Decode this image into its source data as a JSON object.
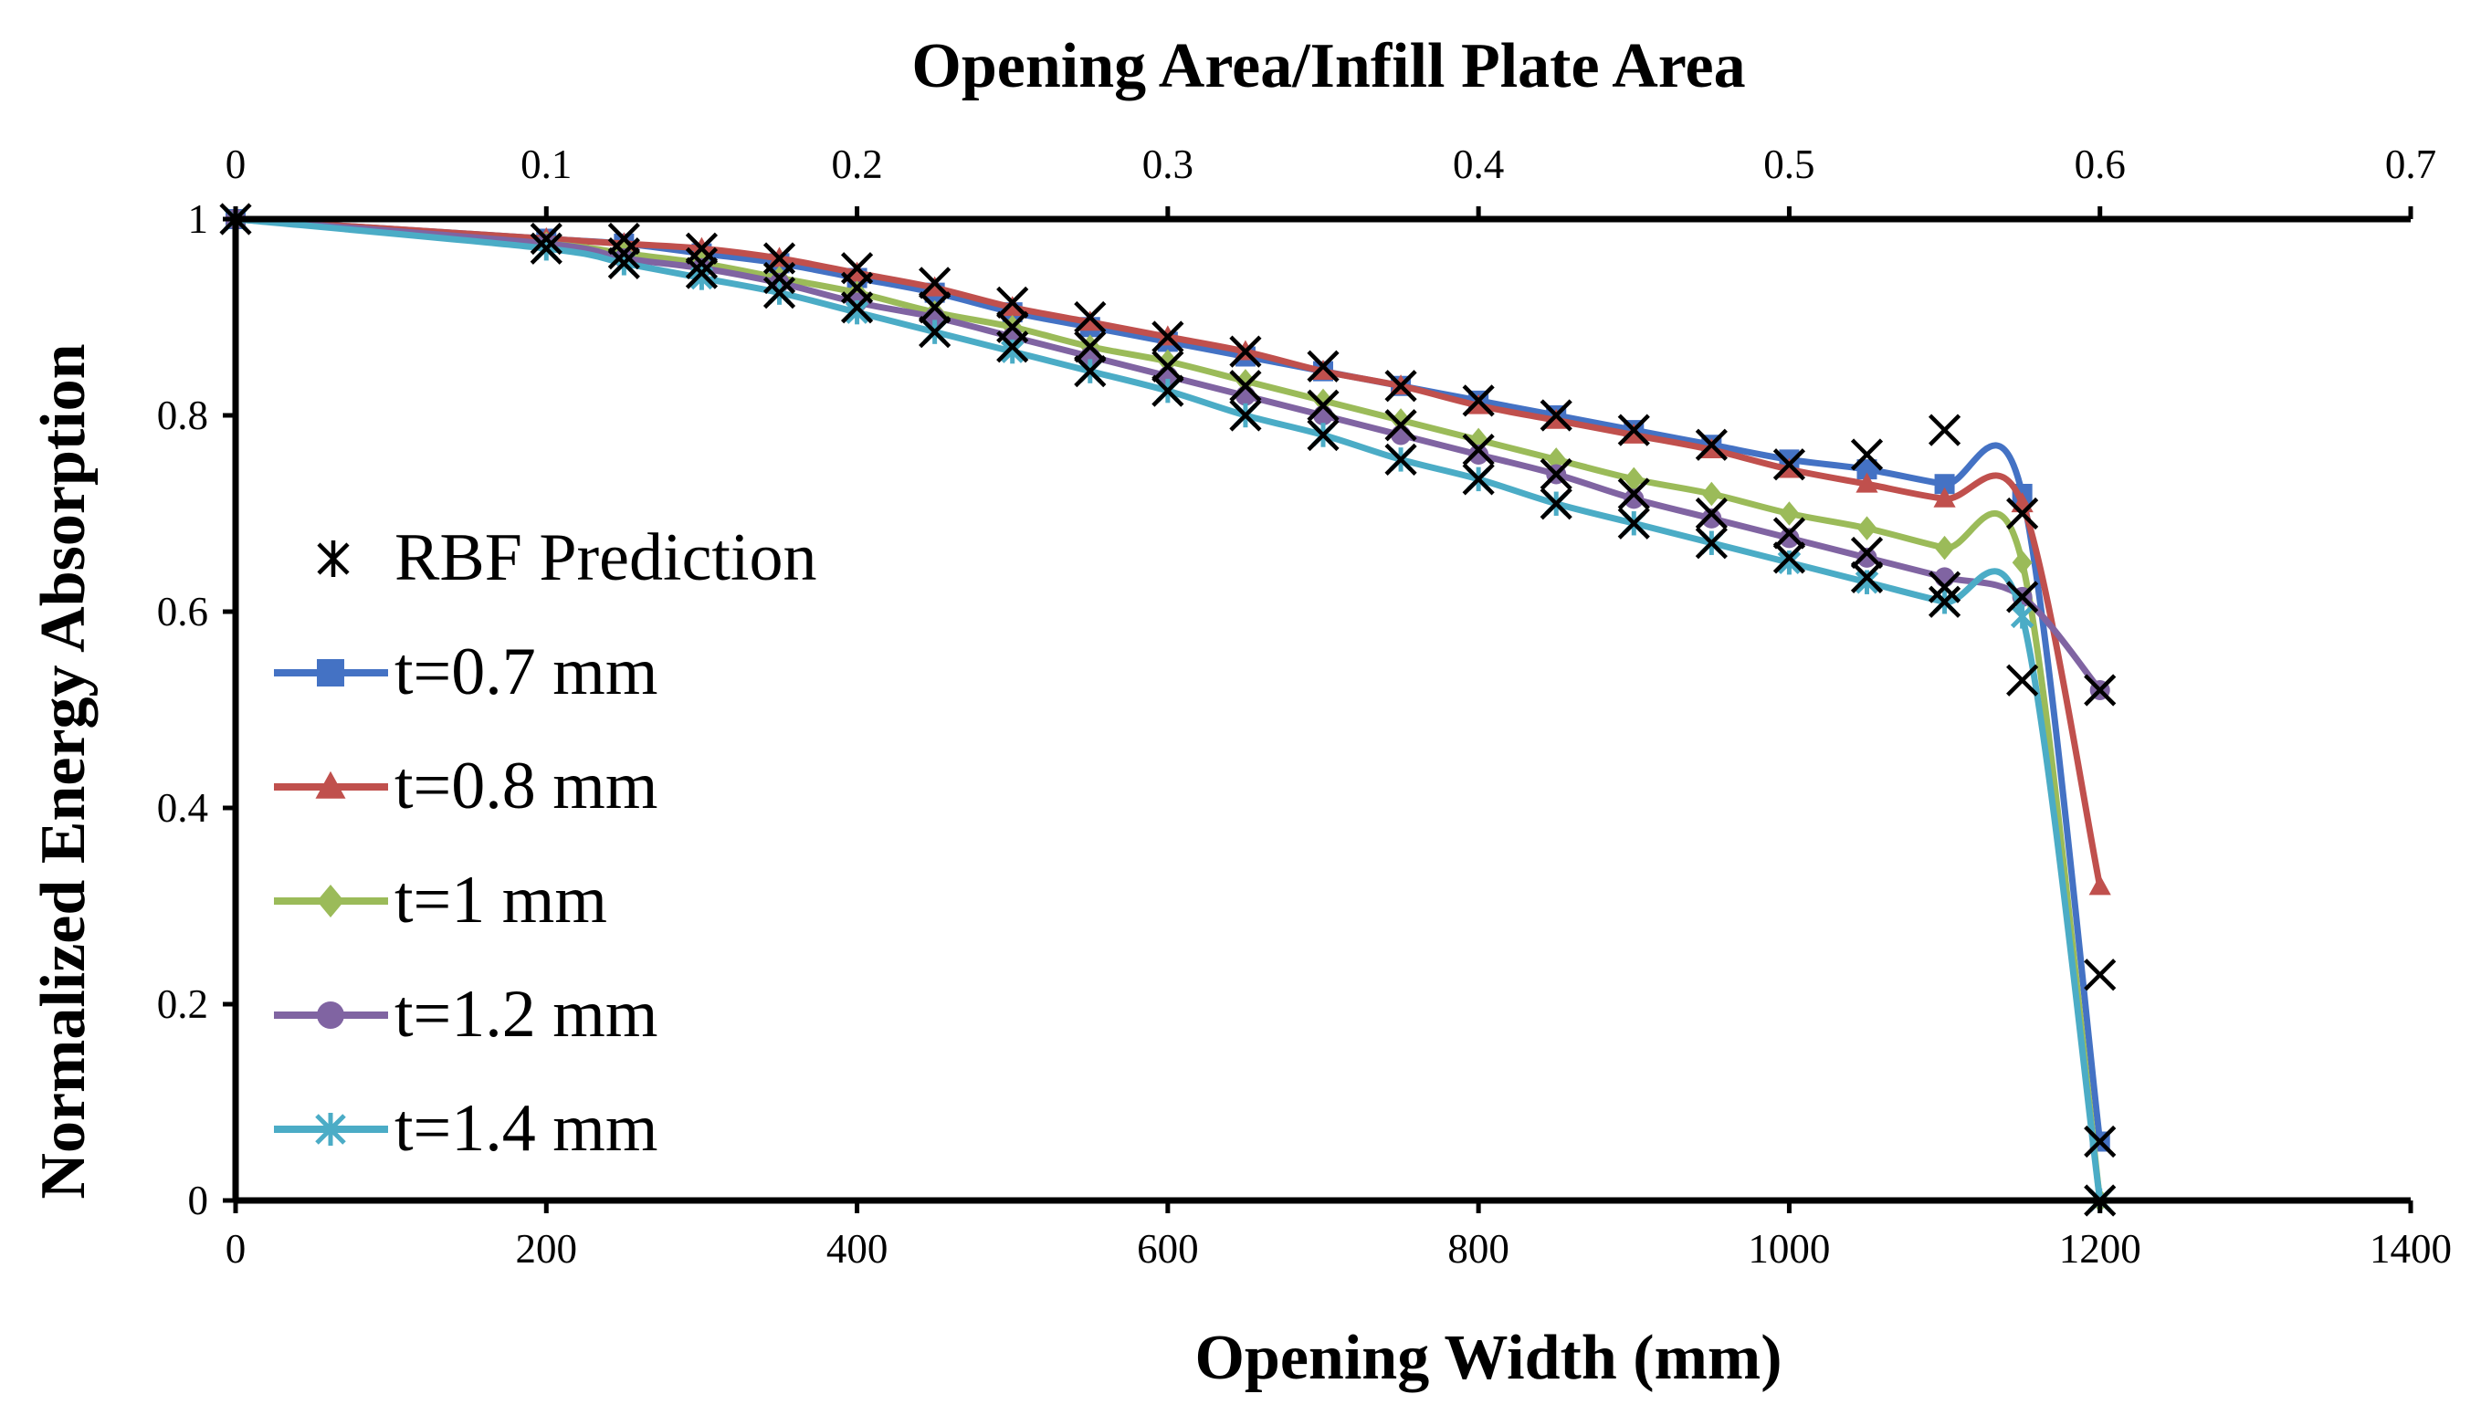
{
  "chart_data": {
    "type": "line",
    "title": "",
    "xlabel": "Opening Width (mm)",
    "x2label": "Opening Area/Infill Plate Area",
    "ylabel": "Normalized Energy Absorption",
    "xlim": [
      0,
      1400
    ],
    "x2lim": [
      0,
      0.7
    ],
    "ylim": [
      0,
      1
    ],
    "x_ticks": [
      0,
      200,
      400,
      600,
      800,
      1000,
      1200,
      1400
    ],
    "x2_ticks": [
      0,
      0.1,
      0.2,
      0.3,
      0.4,
      0.5,
      0.6,
      0.7
    ],
    "y_ticks": [
      0,
      0.2,
      0.4,
      0.6,
      0.8,
      1
    ],
    "legend_position": "left",
    "colors": {
      "t07": "#4472C4",
      "t08": "#C0504D",
      "t10": "#9BBB59",
      "t12": "#8064A2",
      "t14": "#4BACC6",
      "rbf": "#000000"
    },
    "rbf_label": "RBF Prediction",
    "series": [
      {
        "name": "t=0.7 mm",
        "color": "#4472C4",
        "marker": "square",
        "x": [
          0,
          200,
          250,
          300,
          350,
          400,
          450,
          500,
          550,
          600,
          650,
          700,
          750,
          800,
          850,
          900,
          950,
          1000,
          1050,
          1100,
          1150,
          1200
        ],
        "values": [
          1,
          0.98,
          0.975,
          0.965,
          0.955,
          0.94,
          0.925,
          0.905,
          0.89,
          0.875,
          0.86,
          0.845,
          0.83,
          0.815,
          0.8,
          0.785,
          0.77,
          0.755,
          0.745,
          0.73,
          0.72,
          0.06
        ]
      },
      {
        "name": "t=0.8 mm",
        "color": "#C0504D",
        "marker": "triangle",
        "x": [
          0,
          200,
          250,
          300,
          350,
          400,
          450,
          500,
          550,
          600,
          650,
          700,
          750,
          800,
          850,
          900,
          950,
          1000,
          1050,
          1100,
          1150,
          1200
        ],
        "values": [
          1,
          0.98,
          0.975,
          0.97,
          0.96,
          0.945,
          0.93,
          0.91,
          0.895,
          0.88,
          0.865,
          0.845,
          0.83,
          0.81,
          0.795,
          0.78,
          0.765,
          0.745,
          0.73,
          0.715,
          0.71,
          0.32
        ]
      },
      {
        "name": "t=1 mm",
        "color": "#9BBB59",
        "marker": "diamond",
        "x": [
          0,
          200,
          250,
          300,
          350,
          400,
          450,
          500,
          550,
          600,
          650,
          700,
          750,
          800,
          850,
          900,
          950,
          1000,
          1050,
          1100,
          1150,
          1200
        ],
        "values": [
          1,
          0.975,
          0.965,
          0.955,
          0.94,
          0.925,
          0.905,
          0.89,
          0.87,
          0.855,
          0.835,
          0.815,
          0.795,
          0.775,
          0.755,
          0.735,
          0.72,
          0.7,
          0.685,
          0.665,
          0.65,
          0.0
        ]
      },
      {
        "name": "t=1.2 mm",
        "color": "#8064A2",
        "marker": "circle",
        "x": [
          0,
          200,
          250,
          300,
          350,
          400,
          450,
          500,
          550,
          600,
          650,
          700,
          750,
          800,
          850,
          900,
          950,
          1000,
          1050,
          1100,
          1150,
          1200
        ],
        "values": [
          1,
          0.975,
          0.96,
          0.95,
          0.935,
          0.915,
          0.9,
          0.88,
          0.86,
          0.84,
          0.82,
          0.8,
          0.78,
          0.76,
          0.74,
          0.715,
          0.695,
          0.675,
          0.655,
          0.635,
          0.615,
          0.52
        ]
      },
      {
        "name": "t=1.4 mm",
        "color": "#4BACC6",
        "marker": "star",
        "x": [
          0,
          200,
          250,
          300,
          350,
          400,
          450,
          500,
          550,
          600,
          650,
          700,
          750,
          800,
          850,
          900,
          950,
          1000,
          1050,
          1100,
          1150,
          1200
        ],
        "values": [
          1,
          0.97,
          0.955,
          0.94,
          0.925,
          0.905,
          0.885,
          0.865,
          0.845,
          0.825,
          0.8,
          0.78,
          0.755,
          0.735,
          0.71,
          0.69,
          0.67,
          0.65,
          0.63,
          0.61,
          0.595,
          0.0
        ]
      }
    ],
    "rbf_points": {
      "x": [
        0,
        200,
        200,
        250,
        250,
        250,
        300,
        300,
        300,
        350,
        350,
        350,
        400,
        400,
        400,
        450,
        450,
        450,
        500,
        500,
        500,
        550,
        550,
        550,
        600,
        600,
        600,
        650,
        650,
        650,
        700,
        700,
        700,
        750,
        750,
        750,
        800,
        800,
        800,
        850,
        850,
        850,
        900,
        900,
        900,
        950,
        950,
        950,
        1000,
        1000,
        1000,
        1050,
        1050,
        1050,
        1100,
        1100,
        1100,
        1150,
        1150,
        1150,
        1200,
        1200,
        1200,
        1200
      ],
      "y": [
        1,
        0.98,
        0.97,
        0.98,
        0.965,
        0.955,
        0.97,
        0.955,
        0.945,
        0.96,
        0.94,
        0.925,
        0.95,
        0.93,
        0.91,
        0.935,
        0.91,
        0.885,
        0.915,
        0.89,
        0.87,
        0.9,
        0.87,
        0.845,
        0.88,
        0.85,
        0.825,
        0.865,
        0.83,
        0.8,
        0.85,
        0.81,
        0.78,
        0.83,
        0.79,
        0.755,
        0.815,
        0.765,
        0.735,
        0.8,
        0.74,
        0.71,
        0.785,
        0.72,
        0.69,
        0.77,
        0.7,
        0.67,
        0.75,
        0.68,
        0.655,
        0.76,
        0.66,
        0.635,
        0.785,
        0.625,
        0.61,
        0.7,
        0.615,
        0.53,
        0.52,
        0.23,
        0.06,
        0.0
      ]
    }
  }
}
